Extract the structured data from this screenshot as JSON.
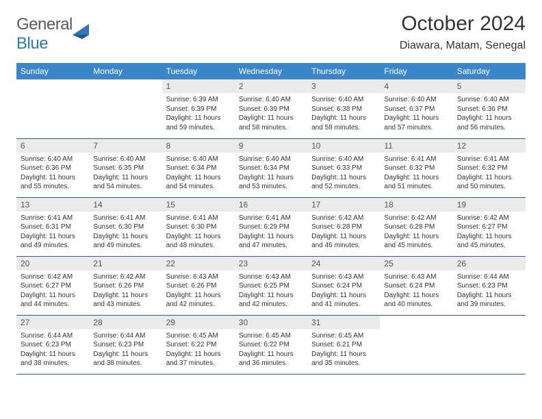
{
  "brand": {
    "part1": "General",
    "part2": "Blue"
  },
  "title": "October 2024",
  "location": "Diawara, Matam, Senegal",
  "colors": {
    "header_bg": "#3a86c8",
    "header_text": "#ffffff",
    "daynum_bg": "#ebebeb",
    "row_border": "#2b5f8e",
    "logo_gray": "#5a5a5a",
    "logo_blue": "#2f78b8"
  },
  "weekday_labels": [
    "Sunday",
    "Monday",
    "Tuesday",
    "Wednesday",
    "Thursday",
    "Friday",
    "Saturday"
  ],
  "leading_blanks": 2,
  "days": [
    {
      "n": "1",
      "sr": "6:39 AM",
      "ss": "6:39 PM",
      "dl": "11 hours and 59 minutes."
    },
    {
      "n": "2",
      "sr": "6:40 AM",
      "ss": "6:39 PM",
      "dl": "11 hours and 58 minutes."
    },
    {
      "n": "3",
      "sr": "6:40 AM",
      "ss": "6:38 PM",
      "dl": "11 hours and 58 minutes."
    },
    {
      "n": "4",
      "sr": "6:40 AM",
      "ss": "6:37 PM",
      "dl": "11 hours and 57 minutes."
    },
    {
      "n": "5",
      "sr": "6:40 AM",
      "ss": "6:36 PM",
      "dl": "11 hours and 56 minutes."
    },
    {
      "n": "6",
      "sr": "6:40 AM",
      "ss": "6:36 PM",
      "dl": "11 hours and 55 minutes."
    },
    {
      "n": "7",
      "sr": "6:40 AM",
      "ss": "6:35 PM",
      "dl": "11 hours and 54 minutes."
    },
    {
      "n": "8",
      "sr": "6:40 AM",
      "ss": "6:34 PM",
      "dl": "11 hours and 54 minutes."
    },
    {
      "n": "9",
      "sr": "6:40 AM",
      "ss": "6:34 PM",
      "dl": "11 hours and 53 minutes."
    },
    {
      "n": "10",
      "sr": "6:40 AM",
      "ss": "6:33 PM",
      "dl": "11 hours and 52 minutes."
    },
    {
      "n": "11",
      "sr": "6:41 AM",
      "ss": "6:32 PM",
      "dl": "11 hours and 51 minutes."
    },
    {
      "n": "12",
      "sr": "6:41 AM",
      "ss": "6:32 PM",
      "dl": "11 hours and 50 minutes."
    },
    {
      "n": "13",
      "sr": "6:41 AM",
      "ss": "6:31 PM",
      "dl": "11 hours and 49 minutes."
    },
    {
      "n": "14",
      "sr": "6:41 AM",
      "ss": "6:30 PM",
      "dl": "11 hours and 49 minutes."
    },
    {
      "n": "15",
      "sr": "6:41 AM",
      "ss": "6:30 PM",
      "dl": "11 hours and 48 minutes."
    },
    {
      "n": "16",
      "sr": "6:41 AM",
      "ss": "6:29 PM",
      "dl": "11 hours and 47 minutes."
    },
    {
      "n": "17",
      "sr": "6:42 AM",
      "ss": "6:28 PM",
      "dl": "11 hours and 46 minutes."
    },
    {
      "n": "18",
      "sr": "6:42 AM",
      "ss": "6:28 PM",
      "dl": "11 hours and 45 minutes."
    },
    {
      "n": "19",
      "sr": "6:42 AM",
      "ss": "6:27 PM",
      "dl": "11 hours and 45 minutes."
    },
    {
      "n": "20",
      "sr": "6:42 AM",
      "ss": "6:27 PM",
      "dl": "11 hours and 44 minutes."
    },
    {
      "n": "21",
      "sr": "6:42 AM",
      "ss": "6:26 PM",
      "dl": "11 hours and 43 minutes."
    },
    {
      "n": "22",
      "sr": "6:43 AM",
      "ss": "6:26 PM",
      "dl": "11 hours and 42 minutes."
    },
    {
      "n": "23",
      "sr": "6:43 AM",
      "ss": "6:25 PM",
      "dl": "11 hours and 42 minutes."
    },
    {
      "n": "24",
      "sr": "6:43 AM",
      "ss": "6:24 PM",
      "dl": "11 hours and 41 minutes."
    },
    {
      "n": "25",
      "sr": "6:43 AM",
      "ss": "6:24 PM",
      "dl": "11 hours and 40 minutes."
    },
    {
      "n": "26",
      "sr": "6:44 AM",
      "ss": "6:23 PM",
      "dl": "11 hours and 39 minutes."
    },
    {
      "n": "27",
      "sr": "6:44 AM",
      "ss": "6:23 PM",
      "dl": "11 hours and 38 minutes."
    },
    {
      "n": "28",
      "sr": "6:44 AM",
      "ss": "6:23 PM",
      "dl": "11 hours and 38 minutes."
    },
    {
      "n": "29",
      "sr": "6:45 AM",
      "ss": "6:22 PM",
      "dl": "11 hours and 37 minutes."
    },
    {
      "n": "30",
      "sr": "6:45 AM",
      "ss": "6:22 PM",
      "dl": "11 hours and 36 minutes."
    },
    {
      "n": "31",
      "sr": "6:45 AM",
      "ss": "6:21 PM",
      "dl": "11 hours and 35 minutes."
    }
  ],
  "labels": {
    "sunrise": "Sunrise:",
    "sunset": "Sunset:",
    "daylight": "Daylight:"
  }
}
